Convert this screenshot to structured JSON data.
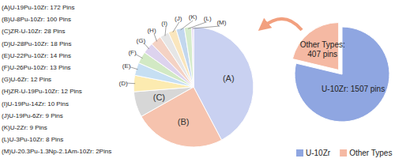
{
  "chart_data": [
    {
      "type": "pie",
      "categories": [
        "(A)U-19Pu-10Zr: 172 Pins",
        "(B)U-8Pu-10Zr: 100 Pins",
        "(C)ZR-U-10Zr: 28 Pins",
        "(D)U-28Pu-10Zr: 18 Pins",
        "(E)U-22Pu-10Zr: 14 Pins",
        "(F)U-26Pu-10Zr: 13 Pins",
        "(G)U-6Zr: 12 Pins",
        "(H)ZR-U-19Pu-10Zr: 12 Pins",
        "(I)U-19Pu-14Zr: 10 Pins",
        "(J)U-19Pu-6Zr: 9 Pins",
        "(K)U-2Zr: 9 Pins",
        "(L)U-3Pu-10Zr: 8 Pins",
        "(M)U-20.3Pu-1.3Np-2.1Am-10Zr: 2Pins"
      ],
      "values": [
        172,
        100,
        28,
        18,
        14,
        13,
        12,
        12,
        10,
        9,
        9,
        8,
        2
      ],
      "slice_labels": [
        "(A)",
        "(B)",
        "(C)",
        "(D)",
        "(E)",
        "(F)",
        "(G)",
        "(H)",
        "(I)",
        "(J)",
        "(K)",
        "(L)",
        "(M)"
      ],
      "colors": [
        "#c9d1f1",
        "#f6c3ae",
        "#d7d7d7",
        "#fcebb0",
        "#c6dff3",
        "#d2e9c4",
        "#ddd3ee",
        "#f4d2c4",
        "#e6e6e6",
        "#fae6bd",
        "#c2d7ee",
        "#d6eccb",
        "#e3d3f1"
      ],
      "legend": "left"
    },
    {
      "type": "pie",
      "categories": [
        "U-10Zr",
        "Other Types"
      ],
      "values": [
        1507,
        407
      ],
      "value_labels": [
        "U-10Zr: 1507 pins",
        "Other Types: 407 pins"
      ],
      "data_labels": true,
      "colors": [
        "#8fa6e1",
        "#f5b9a3"
      ],
      "legend": "bottom"
    }
  ]
}
